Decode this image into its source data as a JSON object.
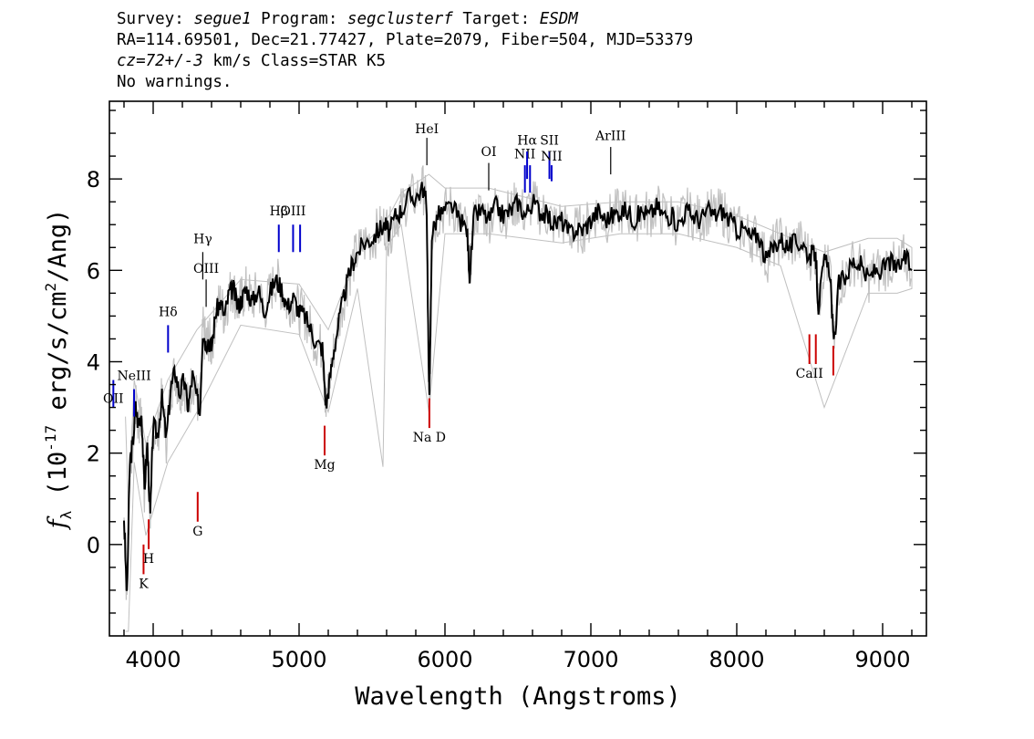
{
  "header": {
    "survey_label": "Survey:",
    "survey": "segue1",
    "program_label": "Program:",
    "program": "segclusterf",
    "target_label": "Target:",
    "target": "ESDM",
    "line2": "RA=114.69501, Dec=21.77427, Plate=2079, Fiber=504, MJD=53379",
    "cz_value": "cz=72+/-3",
    "cz_rest": " km/s Class=STAR K5",
    "warnings": "No warnings."
  },
  "chart_data": {
    "type": "line",
    "xlabel": "Wavelength (Angstroms)",
    "ylabel_main": "f",
    "ylabel_sub": "λ",
    "ylabel_paren_open": " (10",
    "ylabel_exp1": "-17",
    "ylabel_mid": " erg/s/cm",
    "ylabel_exp2": "2",
    "ylabel_end": "/Ang)",
    "xlim": [
      3700,
      9300
    ],
    "ylim": [
      -2.0,
      9.7
    ],
    "x_ticks": [
      4000,
      5000,
      6000,
      7000,
      8000,
      9000
    ],
    "x_tick_labels": [
      "4000",
      "5000",
      "6000",
      "7000",
      "8000",
      "9000"
    ],
    "y_ticks": [
      0,
      2,
      4,
      6,
      8
    ],
    "y_tick_labels": [
      "0",
      "2",
      "4",
      "6",
      "8"
    ],
    "colors": {
      "spectrum": "#000000",
      "error": "#c0c0c0",
      "emission": "#0000cc",
      "absorption": "#cc0000",
      "neutral": "#000000"
    },
    "series": [
      {
        "name": "",
        "color": "#000000",
        "x": [
          3800,
          3820,
          3840,
          3860,
          3880,
          3900,
          3920,
          3940,
          3960,
          3980,
          4000,
          4030,
          4060,
          4090,
          4120,
          4150,
          4180,
          4210,
          4240,
          4270,
          4300,
          4320,
          4340,
          4360,
          4380,
          4400,
          4430,
          4460,
          4490,
          4520,
          4550,
          4580,
          4610,
          4640,
          4680,
          4720,
          4760,
          4800,
          4840,
          4880,
          4920,
          4960,
          5000,
          5040,
          5080,
          5120,
          5160,
          5185,
          5210,
          5240,
          5280,
          5320,
          5360,
          5400,
          5450,
          5500,
          5550,
          5590,
          5620,
          5660,
          5700,
          5750,
          5800,
          5850,
          5875,
          5890,
          5896,
          5910,
          5950,
          6000,
          6050,
          6100,
          6150,
          6170,
          6200,
          6250,
          6300,
          6350,
          6400,
          6450,
          6500,
          6550,
          6600,
          6650,
          6700,
          6750,
          6800,
          6850,
          6900,
          6950,
          7000,
          7050,
          7100,
          7150,
          7200,
          7250,
          7300,
          7350,
          7400,
          7450,
          7500,
          7550,
          7600,
          7650,
          7700,
          7750,
          7800,
          7850,
          7900,
          7950,
          8000,
          8050,
          8100,
          8150,
          8200,
          8250,
          8300,
          8350,
          8400,
          8450,
          8500,
          8540,
          8560,
          8600,
          8640,
          8665,
          8700,
          8750,
          8800,
          8850,
          8900,
          8950,
          9000,
          9050,
          9100,
          9150,
          9200
        ],
        "y": [
          0.6,
          -1.2,
          1.8,
          2.2,
          3.0,
          2.6,
          2.9,
          1.2,
          2.2,
          0.6,
          2.6,
          2.4,
          3.2,
          2.3,
          3.4,
          3.8,
          3.3,
          3.6,
          3.0,
          3.7,
          3.2,
          2.9,
          4.7,
          4.4,
          4.5,
          4.3,
          5.1,
          5.3,
          5.0,
          5.5,
          5.6,
          5.2,
          5.4,
          5.6,
          5.3,
          5.6,
          5.1,
          5.5,
          5.8,
          5.6,
          5.2,
          5.4,
          5.1,
          5.0,
          4.7,
          4.4,
          4.3,
          3.0,
          3.6,
          4.3,
          5.0,
          5.6,
          6.1,
          6.4,
          6.6,
          6.7,
          6.9,
          7.0,
          6.8,
          7.2,
          7.3,
          7.6,
          7.6,
          7.8,
          7.4,
          3.4,
          3.6,
          6.8,
          7.2,
          7.3,
          7.4,
          7.1,
          6.9,
          5.9,
          7.2,
          7.3,
          7.1,
          7.4,
          7.2,
          7.3,
          7.5,
          7.2,
          7.5,
          7.3,
          7.2,
          7.0,
          7.1,
          6.8,
          6.9,
          6.9,
          7.1,
          7.3,
          7.1,
          7.2,
          7.3,
          7.3,
          7.1,
          7.3,
          7.2,
          7.4,
          7.2,
          7.2,
          7.0,
          7.3,
          7.2,
          7.1,
          7.3,
          7.2,
          7.3,
          7.1,
          6.9,
          6.9,
          6.7,
          6.8,
          6.2,
          6.5,
          6.7,
          6.5,
          6.6,
          6.6,
          6.3,
          6.4,
          5.2,
          6.2,
          6.0,
          4.3,
          5.7,
          5.9,
          6.2,
          6.1,
          5.8,
          6.0,
          6.0,
          6.2,
          6.0,
          6.3,
          6.0
        ]
      },
      {
        "name": "",
        "color": "#c0c0c0",
        "x": [
          3810,
          3830,
          3870,
          3950,
          4100,
          4300,
          4600,
          5000,
          5200,
          5400,
          5575,
          5600,
          5700,
          5890,
          6000,
          6300,
          6800,
          7200,
          7600,
          8000,
          8300,
          8600,
          8900,
          9100,
          9200
        ],
        "y_high": [
          2.8,
          0.8,
          3.6,
          2.2,
          3.6,
          4.7,
          5.8,
          5.7,
          4.7,
          6.4,
          7.0,
          7.1,
          7.7,
          8.1,
          7.8,
          7.8,
          7.4,
          7.5,
          7.5,
          7.2,
          6.8,
          6.4,
          6.7,
          6.7,
          6.5
        ],
        "y_low": [
          -1.9,
          -1.9,
          1.8,
          0.2,
          1.8,
          2.9,
          4.8,
          4.6,
          2.9,
          5.6,
          1.7,
          6.5,
          7.0,
          2.9,
          6.8,
          6.8,
          6.6,
          6.8,
          6.8,
          6.5,
          6.1,
          3.0,
          5.5,
          5.5,
          5.6
        ]
      }
    ],
    "lines": [
      {
        "label": "OII",
        "x": 3727,
        "y1": 3.0,
        "y2": 3.6,
        "ly": 3.1,
        "color": "#0000cc"
      },
      {
        "label": "NeIII",
        "x": 3869,
        "y1": 2.8,
        "y2": 3.4,
        "ly": 3.6,
        "color": "#0000cc"
      },
      {
        "label": "Hδ",
        "x": 4102,
        "y1": 4.2,
        "y2": 4.8,
        "ly": 5.0,
        "color": "#0000cc"
      },
      {
        "label": "Hγ",
        "x": 4340,
        "y1": 5.8,
        "y2": 6.4,
        "ly": 6.6,
        "color": "#000000"
      },
      {
        "label": "OIII",
        "x": 4363,
        "y1": 5.2,
        "y2": 5.8,
        "ly": 5.95,
        "color": "#000000"
      },
      {
        "label": "Hβ",
        "x": 4861,
        "y1": 6.4,
        "y2": 7.0,
        "ly": 7.2,
        "color": "#0000cc"
      },
      {
        "label": "OIII",
        "x": 4959,
        "y1": 6.4,
        "y2": 7.0,
        "ly": 7.2,
        "color": "#0000cc"
      },
      {
        "label": "",
        "x": 5007,
        "y1": 6.4,
        "y2": 7.0,
        "ly": 0,
        "color": "#0000cc"
      },
      {
        "label": "HeI",
        "x": 5876,
        "y1": 8.3,
        "y2": 8.9,
        "ly": 9.0,
        "color": "#000000"
      },
      {
        "label": "OI",
        "x": 6300,
        "y1": 7.75,
        "y2": 8.35,
        "ly": 8.5,
        "color": "#000000"
      },
      {
        "label": "NII",
        "x": 6548,
        "y1": 7.7,
        "y2": 8.3,
        "ly": 8.45,
        "color": "#0000cc"
      },
      {
        "label": "Hα",
        "x": 6563,
        "y1": 8.0,
        "y2": 8.6,
        "ly": 8.75,
        "color": "#0000cc"
      },
      {
        "label": "",
        "x": 6583,
        "y1": 7.7,
        "y2": 8.3,
        "ly": 0,
        "color": "#0000cc"
      },
      {
        "label": "SII",
        "x": 6716,
        "y1": 8.0,
        "y2": 8.6,
        "ly": 8.75,
        "color": "#0000cc"
      },
      {
        "label": "NII",
        "x": 6731,
        "y1": 7.95,
        "y2": 8.3,
        "ly": 8.4,
        "color": "#0000cc"
      },
      {
        "label": "ArIII",
        "x": 7136,
        "y1": 8.1,
        "y2": 8.7,
        "ly": 8.85,
        "color": "#000000"
      },
      {
        "label": "K",
        "x": 3934,
        "y1": -0.65,
        "y2": 0.0,
        "ly": -0.95,
        "color": "#cc0000"
      },
      {
        "label": "H",
        "x": 3969,
        "y1": -0.1,
        "y2": 0.55,
        "ly": -0.4,
        "color": "#cc0000"
      },
      {
        "label": "G",
        "x": 4305,
        "y1": 0.5,
        "y2": 1.15,
        "ly": 0.2,
        "color": "#cc0000"
      },
      {
        "label": "Mg",
        "x": 5175,
        "y1": 1.95,
        "y2": 2.6,
        "ly": 1.65,
        "color": "#cc0000"
      },
      {
        "label": "Na D",
        "x": 5893,
        "y1": 2.55,
        "y2": 3.2,
        "ly": 2.25,
        "color": "#cc0000"
      },
      {
        "label": "CaII",
        "x": 8498,
        "y1": 3.95,
        "y2": 4.6,
        "ly": 3.65,
        "color": "#cc0000"
      },
      {
        "label": "",
        "x": 8542,
        "y1": 3.95,
        "y2": 4.6,
        "ly": 0,
        "color": "#cc0000"
      },
      {
        "label": "",
        "x": 8662,
        "y1": 3.7,
        "y2": 4.35,
        "ly": 0,
        "color": "#cc0000"
      }
    ]
  }
}
